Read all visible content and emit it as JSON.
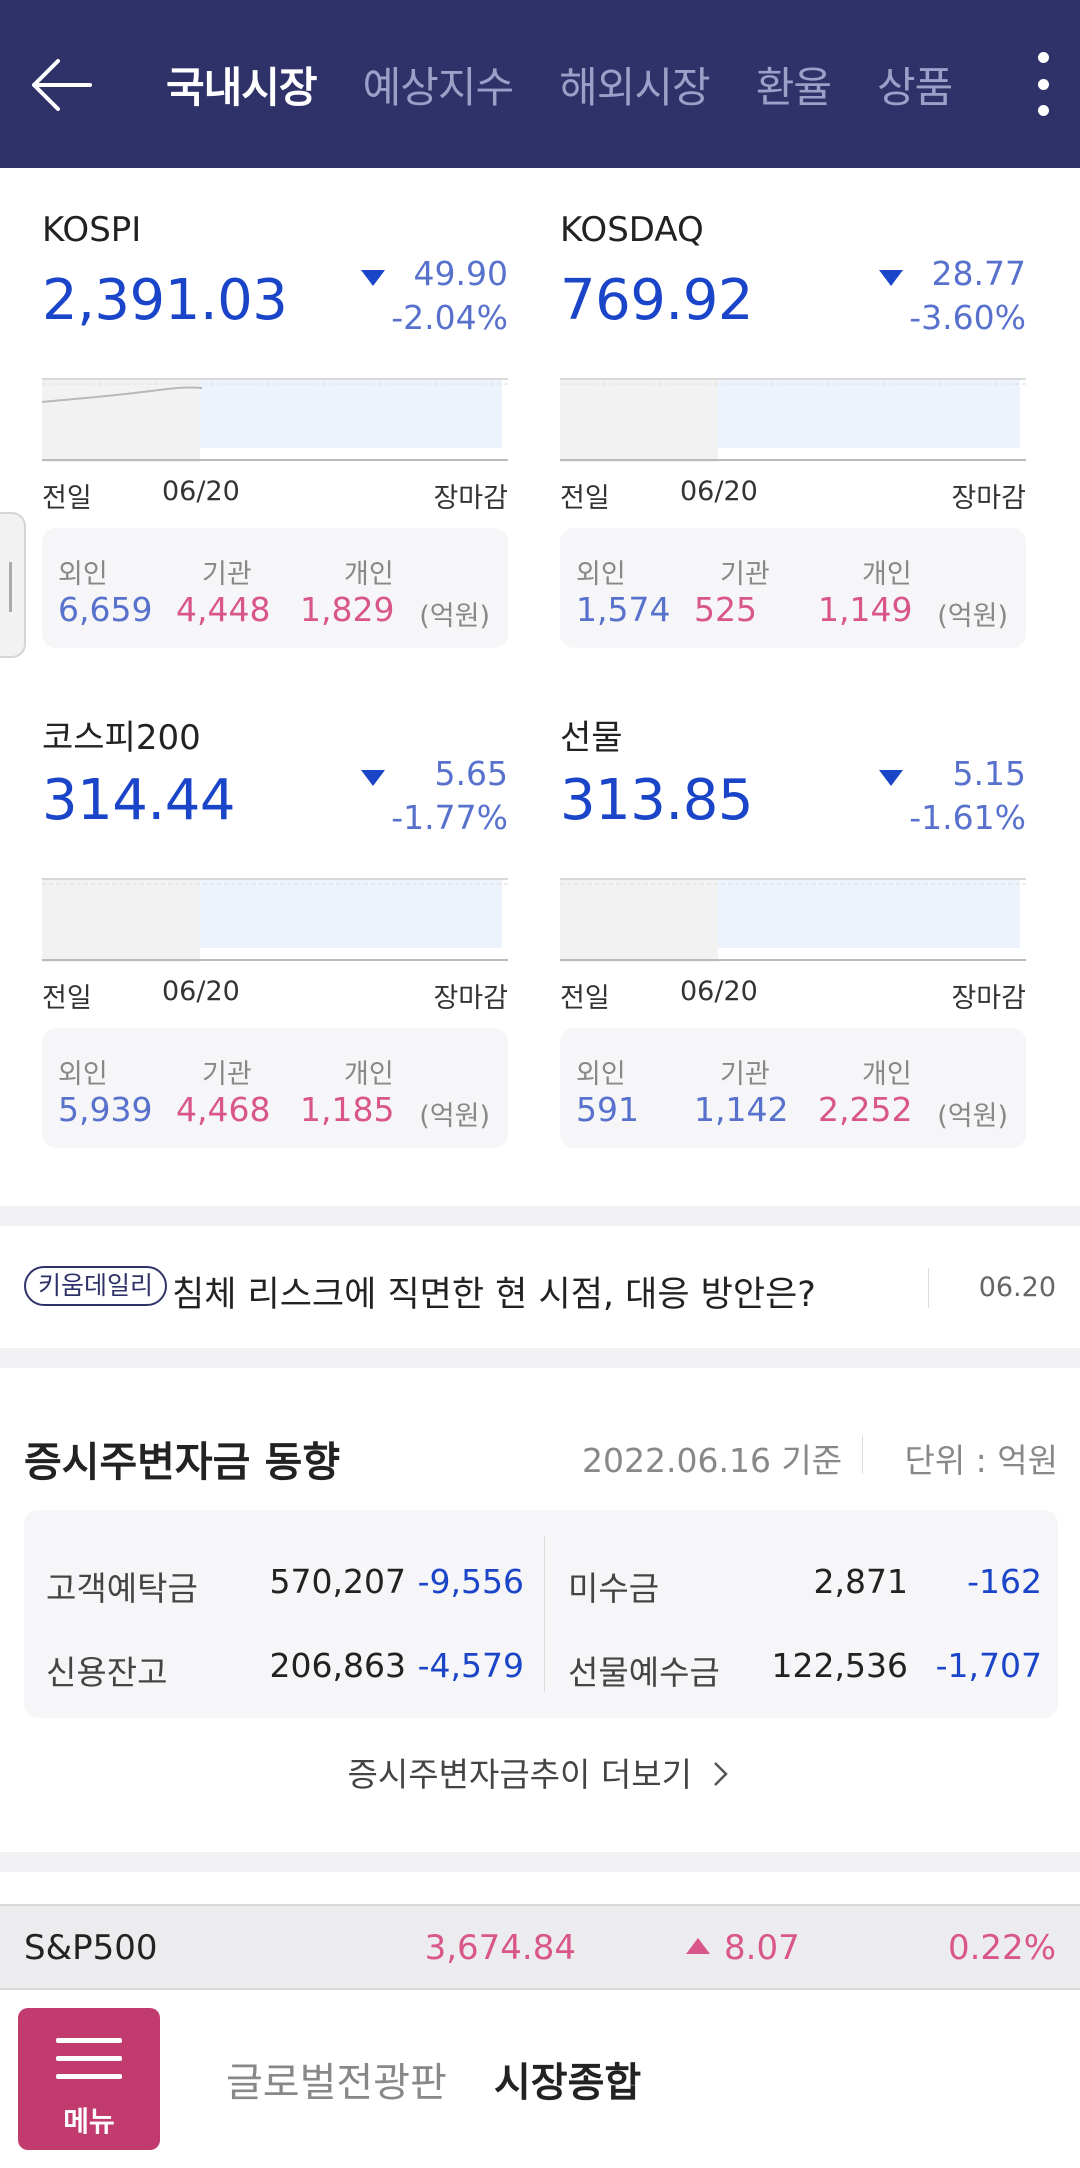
{
  "header": {
    "tabs": [
      {
        "label": "국내시장",
        "active": true
      },
      {
        "label": "예상지수",
        "active": false
      },
      {
        "label": "해외시장",
        "active": false
      },
      {
        "label": "환율",
        "active": false
      },
      {
        "label": "상품",
        "active": false
      }
    ]
  },
  "indices": [
    {
      "name": "KOSPI",
      "value": "2,391.03",
      "change": "49.90",
      "pct": "-2.04%",
      "direction": "down",
      "chart_labels": {
        "prev": "전일",
        "date": "06/20",
        "close": "장마감"
      },
      "investors": {
        "foreign_label": "외인",
        "foreign": "6,659",
        "inst_label": "기관",
        "inst": "4,448",
        "indiv_label": "개인",
        "indiv": "1,829",
        "unit": "(억원)"
      }
    },
    {
      "name": "KOSDAQ",
      "value": "769.92",
      "change": "28.77",
      "pct": "-3.60%",
      "direction": "down",
      "chart_labels": {
        "prev": "전일",
        "date": "06/20",
        "close": "장마감"
      },
      "investors": {
        "foreign_label": "외인",
        "foreign": "1,574",
        "inst_label": "기관",
        "inst": "525",
        "indiv_label": "개인",
        "indiv": "1,149",
        "unit": "(억원)"
      }
    },
    {
      "name": "코스피200",
      "value": "314.44",
      "change": "5.65",
      "pct": "-1.77%",
      "direction": "down",
      "chart_labels": {
        "prev": "전일",
        "date": "06/20",
        "close": "장마감"
      },
      "investors": {
        "foreign_label": "외인",
        "foreign": "5,939",
        "inst_label": "기관",
        "inst": "4,468",
        "indiv_label": "개인",
        "indiv": "1,185",
        "unit": "(억원)"
      }
    },
    {
      "name": "선물",
      "value": "313.85",
      "change": "5.15",
      "pct": "-1.61%",
      "direction": "down",
      "chart_labels": {
        "prev": "전일",
        "date": "06/20",
        "close": "장마감"
      },
      "investors": {
        "foreign_label": "외인",
        "foreign": "591",
        "inst_label": "기관",
        "inst": "1,142",
        "indiv_label": "개인",
        "indiv": "2,252",
        "unit": "(억원)"
      }
    }
  ],
  "news": {
    "badge": "키움데일리",
    "title": "침체 리스크에 직면한 현 시점, 대응 방안은?",
    "date": "06.20"
  },
  "funds": {
    "title": "증시주변자금 동향",
    "as_of": "2022.06.16 기준",
    "unit": "단위 : 억원",
    "rows": [
      {
        "label": "고객예탁금",
        "value": "570,207",
        "change": "-9,556"
      },
      {
        "label": "미수금",
        "value": "2,871",
        "change": "-162"
      },
      {
        "label": "신용잔고",
        "value": "206,863",
        "change": "-4,579"
      },
      {
        "label": "선물예수금",
        "value": "122,536",
        "change": "-1,707"
      }
    ],
    "more_label": "증시주변자금추이 더보기"
  },
  "ticker": {
    "name": "S&P500",
    "value": "3,674.84",
    "change": "8.07",
    "pct": "0.22%"
  },
  "bottom_nav": {
    "menu_label": "메뉴",
    "tab_global": "글로벌전광판",
    "tab_summary": "시장종합"
  },
  "colors": {
    "header_bg": "#2e3268",
    "down_blue": "#1b45c9",
    "up_pink": "#d9568a",
    "menu_bg": "#c23b6e"
  },
  "icons": {
    "back": "arrow-left-icon",
    "more": "more-vertical-icon",
    "chevron": "chevron-right-icon",
    "menu": "hamburger-icon"
  }
}
